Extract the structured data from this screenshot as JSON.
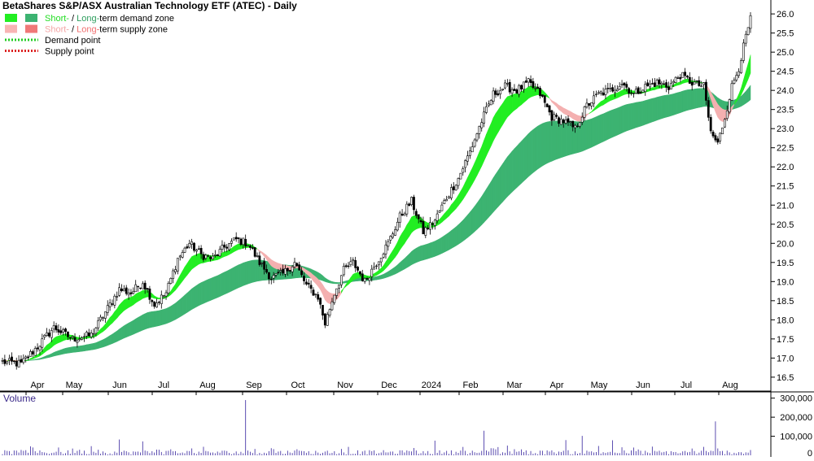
{
  "chart_data": {
    "type": "candlestick",
    "title": "BetaShares S&P/ASX Australian Technology ETF (ATEC) - Daily",
    "legend": [
      {
        "parts": [
          {
            "text": "Short-",
            "color": "#22dd22"
          },
          {
            "text": " / ",
            "color": "#000000"
          },
          {
            "text": "Long-",
            "color": "#2e9e5e"
          },
          {
            "text": "term demand zone",
            "color": "#000000"
          }
        ],
        "swatches": [
          "#22ee22",
          "#3cb371"
        ]
      },
      {
        "parts": [
          {
            "text": "Short-",
            "color": "#f4a6a6"
          },
          {
            "text": " / ",
            "color": "#000000"
          },
          {
            "text": "Long-",
            "color": "#f07070"
          },
          {
            "text": "term supply zone",
            "color": "#000000"
          }
        ],
        "swatches": [
          "#f8b4b4",
          "#f07878"
        ]
      },
      {
        "parts": [
          {
            "text": "Demand point",
            "color": "#000000"
          }
        ],
        "dotted": "#22cc22"
      },
      {
        "parts": [
          {
            "text": "Supply point",
            "color": "#000000"
          }
        ],
        "dotted": "#dd2222"
      }
    ],
    "price_axis": {
      "ticks": [
        "16.5",
        "17.0",
        "17.5",
        "18.0",
        "18.5",
        "19.0",
        "19.5",
        "20.0",
        "20.5",
        "21.0",
        "21.5",
        "22.0",
        "22.5",
        "23.0",
        "23.5",
        "24.0",
        "24.5",
        "25.0",
        "25.5",
        "26.0"
      ],
      "min": 16.2,
      "max": 26.3
    },
    "x_axis": {
      "months": [
        "Apr",
        "May",
        "Jun",
        "Jul",
        "Aug",
        "Sep",
        "Oct",
        "Nov",
        "Dec",
        "2024",
        "Feb",
        "Mar",
        "Apr",
        "May",
        "Jun",
        "Jul",
        "Aug"
      ]
    },
    "anchors": [
      [
        0,
        16.9
      ],
      [
        8,
        16.85
      ],
      [
        15,
        17.3
      ],
      [
        22,
        17.8
      ],
      [
        30,
        17.5
      ],
      [
        38,
        17.6
      ],
      [
        45,
        18.3
      ],
      [
        50,
        18.8
      ],
      [
        55,
        18.7
      ],
      [
        60,
        19.0
      ],
      [
        65,
        18.4
      ],
      [
        70,
        18.7
      ],
      [
        75,
        19.6
      ],
      [
        80,
        20.0
      ],
      [
        85,
        19.7
      ],
      [
        90,
        19.6
      ],
      [
        95,
        19.9
      ],
      [
        100,
        20.1
      ],
      [
        105,
        20.0
      ],
      [
        110,
        19.5
      ],
      [
        115,
        19.1
      ],
      [
        120,
        19.2
      ],
      [
        125,
        19.5
      ],
      [
        130,
        18.9
      ],
      [
        135,
        18.6
      ],
      [
        138,
        17.9
      ],
      [
        142,
        18.7
      ],
      [
        146,
        19.3
      ],
      [
        150,
        19.5
      ],
      [
        155,
        19.0
      ],
      [
        160,
        19.5
      ],
      [
        165,
        20.0
      ],
      [
        170,
        20.7
      ],
      [
        175,
        21.1
      ],
      [
        180,
        20.3
      ],
      [
        185,
        20.6
      ],
      [
        190,
        21.2
      ],
      [
        195,
        21.7
      ],
      [
        200,
        22.4
      ],
      [
        205,
        23.2
      ],
      [
        210,
        23.9
      ],
      [
        215,
        24.1
      ],
      [
        220,
        24.0
      ],
      [
        225,
        24.2
      ],
      [
        230,
        23.9
      ],
      [
        235,
        23.3
      ],
      [
        240,
        23.2
      ],
      [
        245,
        23.0
      ],
      [
        250,
        23.6
      ],
      [
        255,
        23.9
      ],
      [
        260,
        24.0
      ],
      [
        265,
        24.2
      ],
      [
        270,
        23.9
      ],
      [
        275,
        24.1
      ],
      [
        280,
        24.2
      ],
      [
        285,
        24.1
      ],
      [
        290,
        24.4
      ],
      [
        295,
        24.2
      ],
      [
        300,
        24.1
      ],
      [
        303,
        22.9
      ],
      [
        306,
        22.6
      ],
      [
        309,
        23.3
      ],
      [
        312,
        24.1
      ],
      [
        315,
        24.6
      ],
      [
        318,
        25.4
      ],
      [
        320,
        25.85
      ]
    ],
    "n_bars": 321,
    "volume": {
      "label": "Volume",
      "ticks": [
        "100,000",
        "200,000",
        "300,000"
      ],
      "min": 0,
      "max": 320000,
      "baseline_label": "0",
      "spikes": [
        [
          24,
          41000
        ],
        [
          38,
          48000
        ],
        [
          50,
          83000
        ],
        [
          60,
          73000
        ],
        [
          104,
          290000
        ],
        [
          185,
          77000
        ],
        [
          197,
          44000
        ],
        [
          206,
          129000
        ],
        [
          216,
          51000
        ],
        [
          241,
          80000
        ],
        [
          248,
          102000
        ],
        [
          255,
          49000
        ],
        [
          261,
          79000
        ],
        [
          305,
          178000
        ],
        [
          320,
          28000
        ]
      ]
    }
  }
}
